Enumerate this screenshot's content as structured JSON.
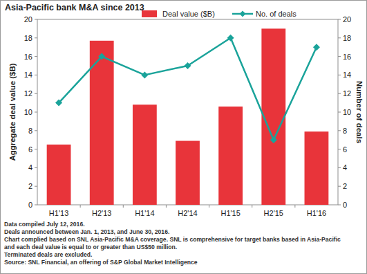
{
  "chart_data": {
    "type": "bar",
    "title": "Asia-Pacific bank M&A since 2013",
    "categories": [
      "H1'13",
      "H2'13",
      "H1'14",
      "H2'14",
      "H1'15",
      "H2'15",
      "H1'16"
    ],
    "series": [
      {
        "name": "Deal value ($B)",
        "type": "bar",
        "color": "#e8343a",
        "values": [
          6.5,
          17.7,
          10.8,
          6.9,
          10.6,
          19.0,
          7.9
        ]
      },
      {
        "name": "No. of deals",
        "type": "line",
        "axis": "y2",
        "color": "#1aa39a",
        "marker": "diamond",
        "values": [
          11,
          16,
          14,
          15,
          18,
          7,
          17
        ]
      }
    ],
    "y_label": "Aggregate deal value ($B)",
    "y2_label": "Number of deals",
    "ylim": [
      0,
      20
    ],
    "yticks": [
      0,
      2,
      4,
      6,
      8,
      10,
      12,
      14,
      16,
      18,
      20
    ],
    "y2lim": [
      0,
      20
    ],
    "y2ticks": [
      0,
      2,
      4,
      6,
      8,
      10,
      12,
      14,
      16,
      18,
      20
    ],
    "grid": false,
    "legend": "top",
    "annotations": [
      "Data compiled July 12, 2016.",
      "Deals announced between Jan. 1, 2013, and June 30, 2016.",
      "Chart complied based on SNL Asia-Pacific M&A coverage. SNL is comprehensive for target banks based in Asia-Pacific",
      "and each deal value is equal to or greater than US$50 million.",
      "Terminated deals are excluded.",
      "Source: SNL Financial, an offering of S&P Global Market Intelligence"
    ]
  }
}
